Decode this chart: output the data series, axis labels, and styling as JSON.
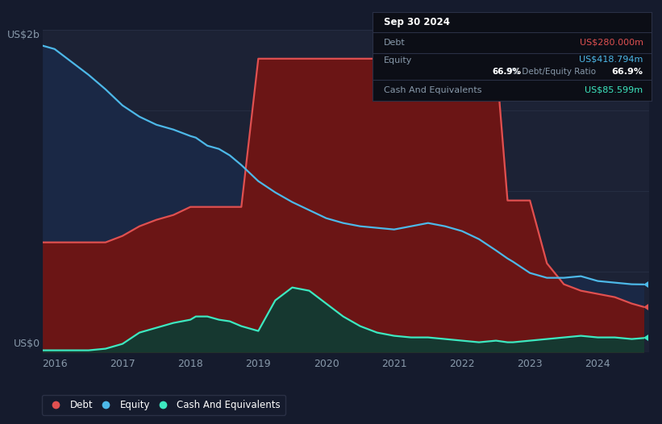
{
  "bg_color": "#151b2d",
  "plot_bg_color": "#1c2235",
  "grid_color": "#252d42",
  "ylabel_text": "US$2b",
  "ylabel0_text": "US$0",
  "xlabel_ticks": [
    "2016",
    "2017",
    "2018",
    "2019",
    "2020",
    "2021",
    "2022",
    "2023",
    "2024"
  ],
  "tooltip_date": "Sep 30 2024",
  "tooltip_debt_label": "Debt",
  "tooltip_debt_value": "US$280.000m",
  "tooltip_equity_label": "Equity",
  "tooltip_equity_value": "US$418.794m",
  "tooltip_ratio": "66.9%",
  "tooltip_ratio_suffix": " Debt/Equity Ratio",
  "tooltip_cash_label": "Cash And Equivalents",
  "tooltip_cash_value": "US$85.599m",
  "debt_color": "#e05050",
  "equity_color": "#4db8e8",
  "cash_color": "#3de8c0",
  "debt_fill_color": "#6b1515",
  "equity_fill_color": "#1a2845",
  "cash_fill_color": "#163830",
  "years": [
    2015.83,
    2016.0,
    2016.25,
    2016.5,
    2016.75,
    2017.0,
    2017.25,
    2017.5,
    2017.75,
    2018.0,
    2018.08,
    2018.25,
    2018.42,
    2018.58,
    2018.75,
    2019.0,
    2019.25,
    2019.5,
    2019.75,
    2020.0,
    2020.25,
    2020.5,
    2020.75,
    2021.0,
    2021.25,
    2021.5,
    2021.75,
    2022.0,
    2022.25,
    2022.5,
    2022.67,
    2022.75,
    2023.0,
    2023.25,
    2023.5,
    2023.75,
    2024.0,
    2024.25,
    2024.5,
    2024.67
  ],
  "equity": [
    1.9,
    1.88,
    1.8,
    1.72,
    1.63,
    1.53,
    1.46,
    1.41,
    1.38,
    1.34,
    1.33,
    1.28,
    1.26,
    1.22,
    1.16,
    1.06,
    0.99,
    0.93,
    0.88,
    0.83,
    0.8,
    0.78,
    0.77,
    0.76,
    0.78,
    0.8,
    0.78,
    0.75,
    0.7,
    0.63,
    0.58,
    0.56,
    0.49,
    0.46,
    0.46,
    0.47,
    0.44,
    0.43,
    0.42,
    0.419
  ],
  "debt": [
    0.68,
    0.68,
    0.68,
    0.68,
    0.68,
    0.72,
    0.78,
    0.82,
    0.85,
    0.9,
    0.9,
    0.9,
    0.9,
    0.9,
    0.9,
    1.82,
    1.82,
    1.82,
    1.82,
    1.82,
    1.82,
    1.82,
    1.82,
    1.82,
    1.82,
    1.82,
    1.82,
    1.82,
    1.82,
    1.82,
    0.94,
    0.94,
    0.94,
    0.55,
    0.42,
    0.38,
    0.36,
    0.34,
    0.3,
    0.28
  ],
  "cash": [
    0.01,
    0.01,
    0.01,
    0.01,
    0.02,
    0.05,
    0.12,
    0.15,
    0.18,
    0.2,
    0.22,
    0.22,
    0.2,
    0.19,
    0.16,
    0.13,
    0.32,
    0.4,
    0.38,
    0.3,
    0.22,
    0.16,
    0.12,
    0.1,
    0.09,
    0.09,
    0.08,
    0.07,
    0.06,
    0.07,
    0.06,
    0.06,
    0.07,
    0.08,
    0.09,
    0.1,
    0.09,
    0.09,
    0.08,
    0.086
  ],
  "ylim": [
    0,
    2.0
  ],
  "xlim": [
    2015.83,
    2024.75
  ]
}
